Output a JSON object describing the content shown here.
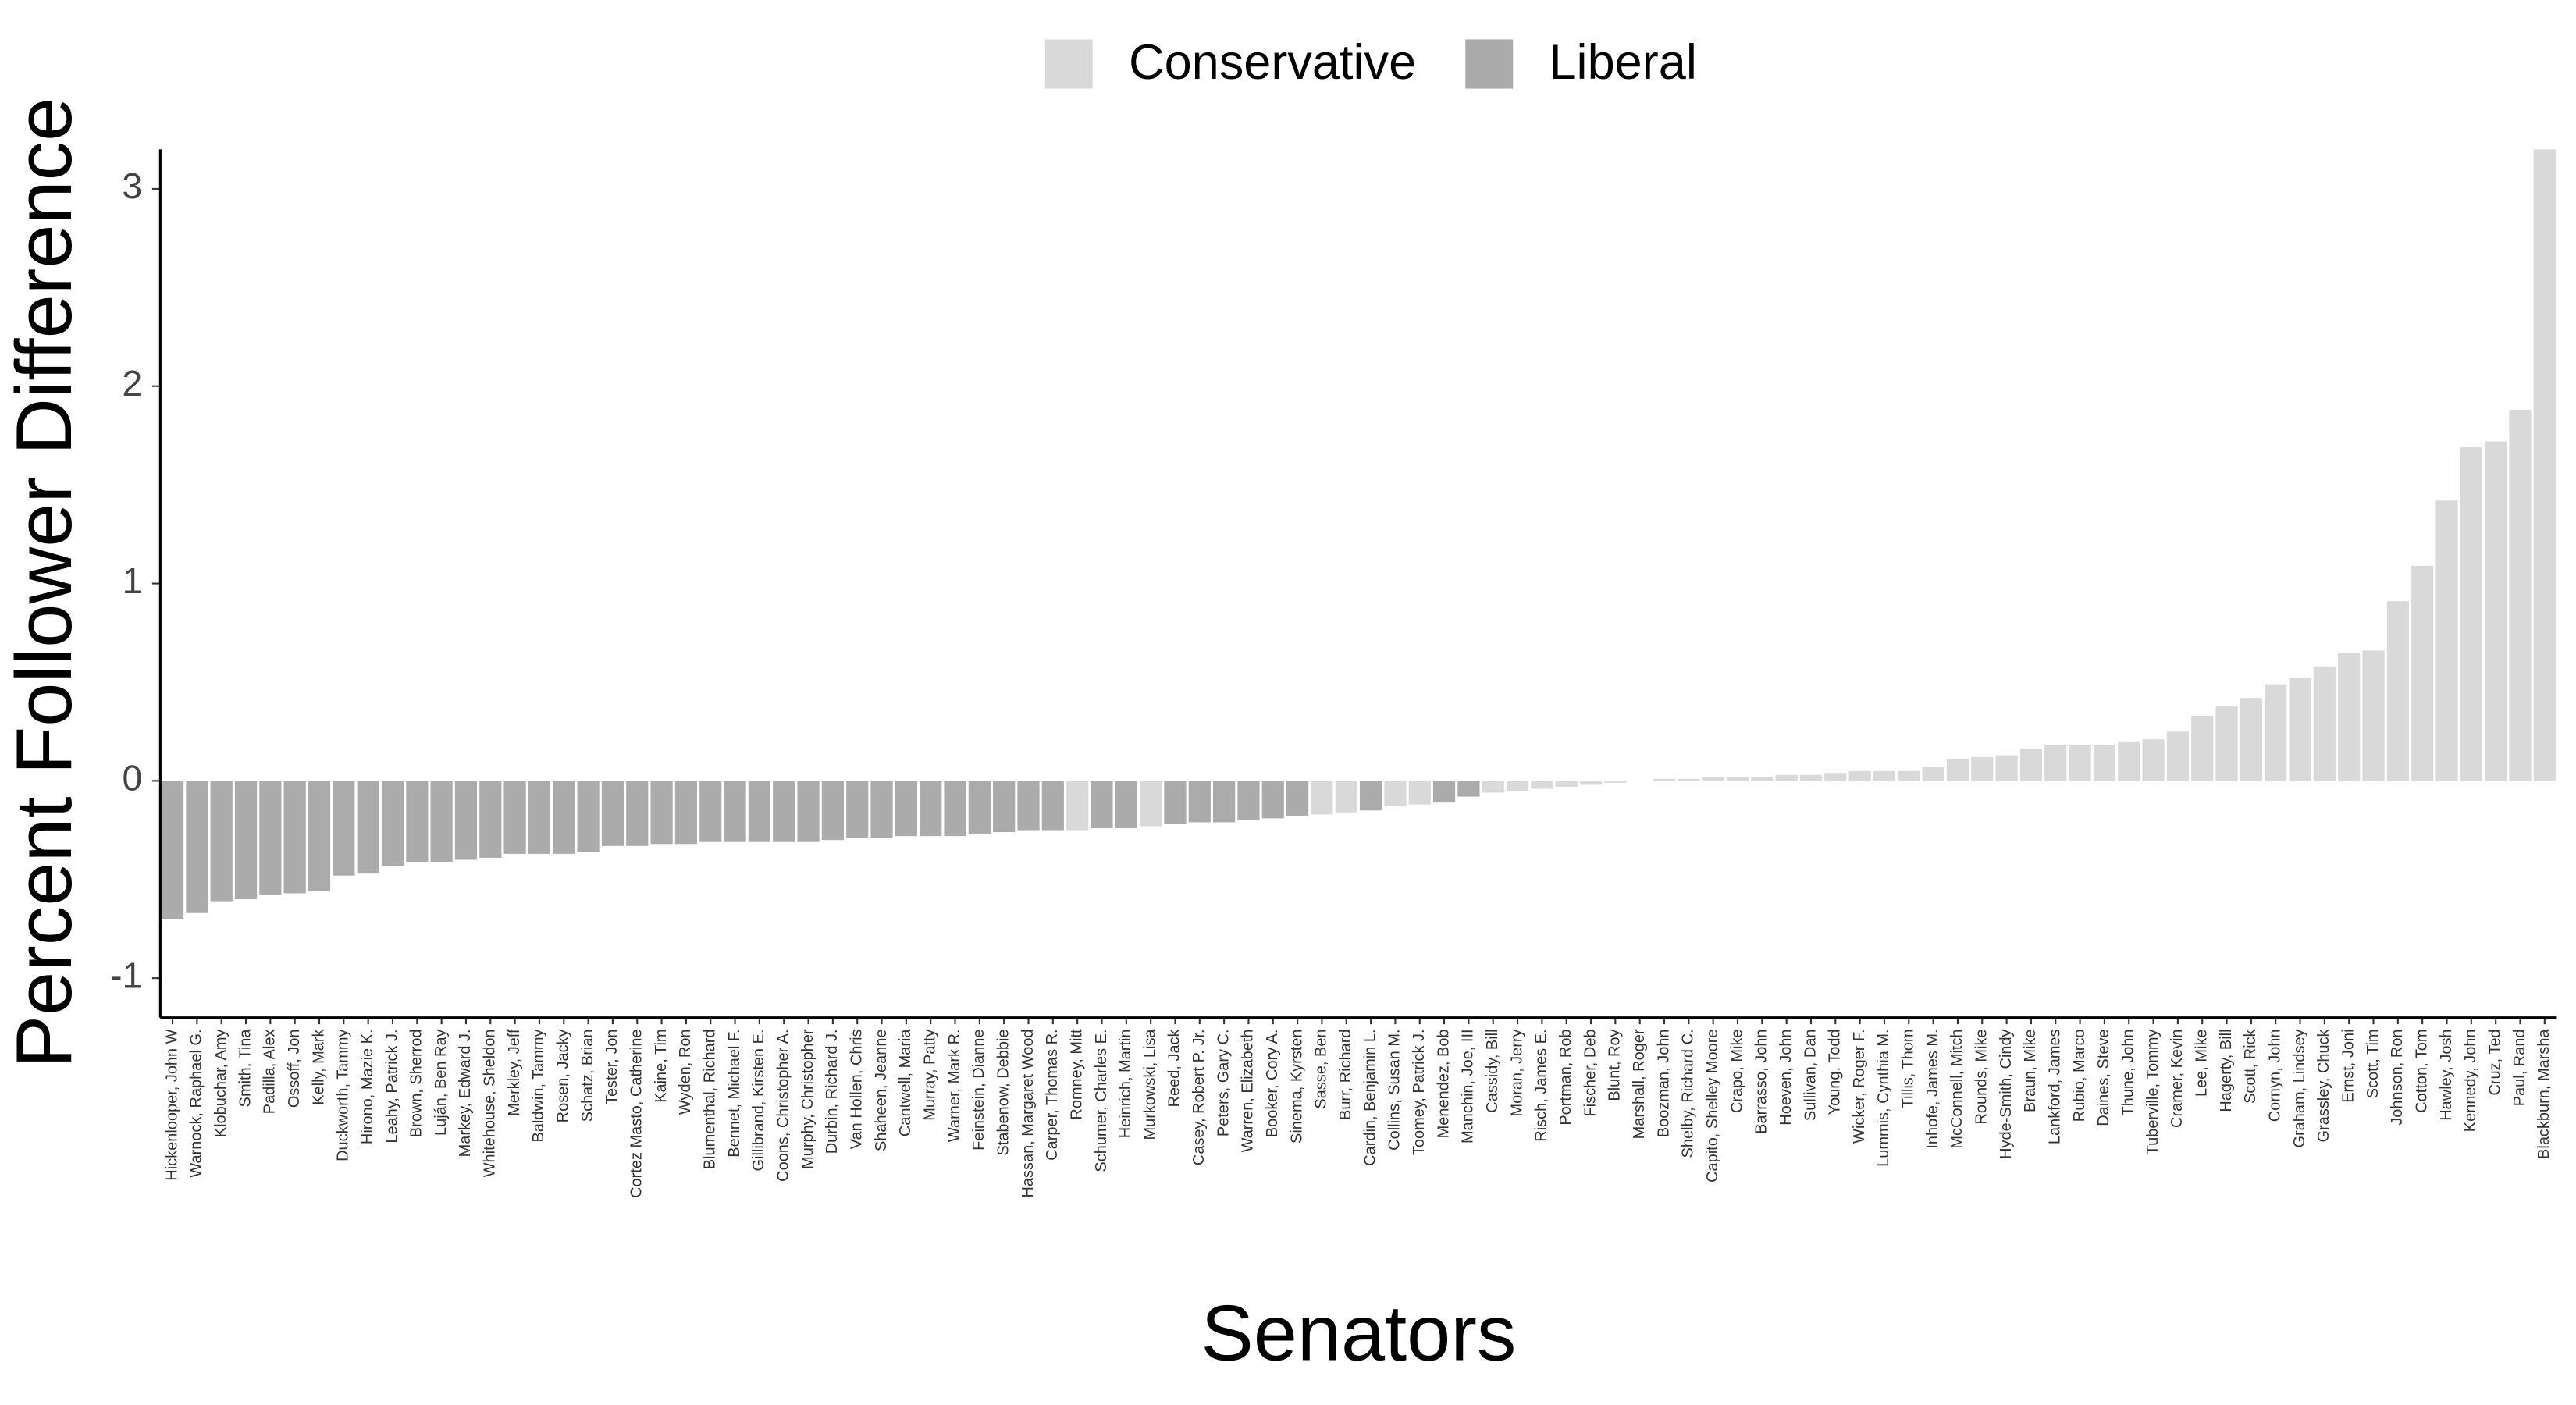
{
  "chart_data": {
    "type": "bar",
    "x_label": "Senators",
    "y_label": "Percent Follower Difference",
    "legend": [
      {
        "name": "Conservative",
        "color": "#d9d9d9"
      },
      {
        "name": "Liberal",
        "color": "#ababab"
      }
    ],
    "categories": [
      "Hickenlooper, John W",
      "Warnock, Raphael G.",
      "Klobuchar, Amy",
      "Smith, Tina",
      "Padilla, Alex",
      "Ossoff, Jon",
      "Kelly, Mark",
      "Duckworth, Tammy",
      "Hirono, Mazie K.",
      "Leahy, Patrick J.",
      "Brown, Sherrod",
      "Luján, Ben Ray",
      "Markey, Edward J.",
      "Whitehouse, Sheldon",
      "Merkley, Jeff",
      "Baldwin, Tammy",
      "Rosen, Jacky",
      "Schatz, Brian",
      "Tester, Jon",
      "Cortez Masto, Catherine",
      "Kaine, Tim",
      "Wyden, Ron",
      "Blumenthal, Richard",
      "Bennet, Michael F.",
      "Gillibrand, Kirsten E.",
      "Coons, Christopher A.",
      "Murphy, Christopher",
      "Durbin, Richard J.",
      "Van Hollen, Chris",
      "Shaheen, Jeanne",
      "Cantwell, Maria",
      "Murray, Patty",
      "Warner, Mark R.",
      "Feinstein, Dianne",
      "Stabenow, Debbie",
      "Hassan, Margaret Wood",
      "Carper, Thomas R.",
      "Romney, Mitt",
      "Schumer, Charles E.",
      "Heinrich, Martin",
      "Murkowski, Lisa",
      "Reed, Jack",
      "Casey, Robert P. Jr.",
      "Peters, Gary C.",
      "Warren, Elizabeth",
      "Booker, Cory A.",
      "Sinema, Kyrsten",
      "Sasse, Ben",
      "Burr, Richard",
      "Cardin, Benjamin L.",
      "Collins, Susan M.",
      "Toomey, Patrick J.",
      "Menendez, Bob",
      "Manchin, Joe, III",
      "Cassidy, Bill",
      "Moran, Jerry",
      "Risch, James E.",
      "Portman, Rob",
      "Fischer, Deb",
      "Blunt, Roy",
      "Marshall, Roger",
      "Boozman, John",
      "Shelby, Richard C.",
      "Capito, Shelley Moore",
      "Crapo, Mike",
      "Barrasso, John",
      "Hoeven, John",
      "Sullivan, Dan",
      "Young, Todd",
      "Wicker, Roger F.",
      "Lummis, Cynthia M.",
      "Tillis, Thom",
      "Inhofe, James M.",
      "McConnell, Mitch",
      "Rounds, Mike",
      "Hyde-Smith, Cindy",
      "Braun, Mike",
      "Lankford, James",
      "Rubio, Marco",
      "Daines, Steve",
      "Thune, John",
      "Tuberville, Tommy",
      "Cramer, Kevin",
      "Lee, Mike",
      "Hagerty, Bill",
      "Scott, Rick",
      "Cornyn, John",
      "Graham, Lindsey",
      "Grassley, Chuck",
      "Ernst, Joni",
      "Scott, Tim",
      "Johnson, Ron",
      "Cotton, Tom",
      "Hawley, Josh",
      "Kennedy, John",
      "Cruz, Ted",
      "Paul, Rand",
      "Blackburn, Marsha"
    ],
    "values": [
      -0.7,
      -0.67,
      -0.61,
      -0.6,
      -0.58,
      -0.57,
      -0.56,
      -0.48,
      -0.47,
      -0.43,
      -0.41,
      -0.41,
      -0.4,
      -0.39,
      -0.37,
      -0.37,
      -0.37,
      -0.36,
      -0.33,
      -0.33,
      -0.32,
      -0.32,
      -0.31,
      -0.31,
      -0.31,
      -0.31,
      -0.31,
      -0.3,
      -0.29,
      -0.29,
      -0.28,
      -0.28,
      -0.28,
      -0.27,
      -0.26,
      -0.25,
      -0.25,
      -0.25,
      -0.24,
      -0.24,
      -0.23,
      -0.22,
      -0.21,
      -0.21,
      -0.2,
      -0.19,
      -0.18,
      -0.17,
      -0.16,
      -0.15,
      -0.13,
      -0.12,
      -0.11,
      -0.08,
      -0.06,
      -0.05,
      -0.04,
      -0.03,
      -0.02,
      -0.01,
      0,
      0.01,
      0.01,
      0.02,
      0.02,
      0.02,
      0.03,
      0.03,
      0.04,
      0.05,
      0.05,
      0.05,
      0.07,
      0.11,
      0.12,
      0.13,
      0.16,
      0.18,
      0.18,
      0.18,
      0.2,
      0.21,
      0.25,
      0.33,
      0.38,
      0.42,
      0.49,
      0.52,
      0.58,
      0.65,
      0.66,
      0.91,
      1.09,
      1.42,
      1.69,
      1.72,
      1.88,
      3.2
    ],
    "groups": [
      "Liberal",
      "Liberal",
      "Liberal",
      "Liberal",
      "Liberal",
      "Liberal",
      "Liberal",
      "Liberal",
      "Liberal",
      "Liberal",
      "Liberal",
      "Liberal",
      "Liberal",
      "Liberal",
      "Liberal",
      "Liberal",
      "Liberal",
      "Liberal",
      "Liberal",
      "Liberal",
      "Liberal",
      "Liberal",
      "Liberal",
      "Liberal",
      "Liberal",
      "Liberal",
      "Liberal",
      "Liberal",
      "Liberal",
      "Liberal",
      "Liberal",
      "Liberal",
      "Liberal",
      "Liberal",
      "Liberal",
      "Liberal",
      "Liberal",
      "Conservative",
      "Liberal",
      "Liberal",
      "Conservative",
      "Liberal",
      "Liberal",
      "Liberal",
      "Liberal",
      "Liberal",
      "Liberal",
      "Conservative",
      "Conservative",
      "Liberal",
      "Conservative",
      "Conservative",
      "Liberal",
      "Liberal",
      "Conservative",
      "Conservative",
      "Conservative",
      "Conservative",
      "Conservative",
      "Conservative",
      "Conservative",
      "Conservative",
      "Conservative",
      "Conservative",
      "Conservative",
      "Conservative",
      "Conservative",
      "Conservative",
      "Conservative",
      "Conservative",
      "Conservative",
      "Conservative",
      "Conservative",
      "Conservative",
      "Conservative",
      "Conservative",
      "Conservative",
      "Conservative",
      "Conservative",
      "Conservative",
      "Conservative",
      "Conservative",
      "Conservative",
      "Conservative",
      "Conservative",
      "Conservative",
      "Conservative",
      "Conservative",
      "Conservative",
      "Conservative",
      "Conservative",
      "Conservative",
      "Conservative",
      "Conservative",
      "Conservative",
      "Conservative",
      "Conservative",
      "Conservative"
    ],
    "ylim": [
      -1.2,
      3.2
    ],
    "yticks": [
      -1,
      0,
      1,
      2,
      3
    ],
    "grid": false
  }
}
